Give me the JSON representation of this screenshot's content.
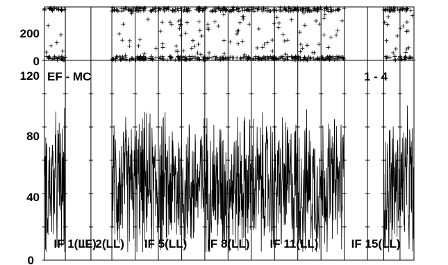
{
  "chart_data": [
    {
      "type": "scatter",
      "panel": "phase",
      "ylim": [
        0,
        360
      ],
      "yticks": [
        {
          "value": 200,
          "label": "200"
        },
        {
          "value": 0,
          "label": "0"
        }
      ],
      "segments": [
        [
          0,
          9
        ],
        [
          29,
          129
        ],
        [
          146,
          159
        ]
      ],
      "xlim": [
        0,
        159
      ],
      "marker": "+"
    },
    {
      "type": "line",
      "panel": "amplitude",
      "ylim": [
        0,
        120
      ],
      "yticks": [
        {
          "value": 120,
          "label": "120"
        },
        {
          "value": 80,
          "label": "80"
        },
        {
          "value": 40,
          "label": "40"
        },
        {
          "value": 0,
          "label": "0"
        }
      ],
      "annotations": {
        "left": "EF - MC",
        "right": "1 - 4"
      },
      "if_labels": [
        {
          "text": "IF 1(LL)",
          "x": 4
        },
        {
          "text": "IF 2(LL)",
          "x": 16
        },
        {
          "text": "IF 5(LL)",
          "x": 43
        },
        {
          "text": "IF 8(LL)",
          "x": 70
        },
        {
          "text": "IF 11(LL)",
          "x": 97
        },
        {
          "text": "IF 15(LL)",
          "x": 132
        }
      ],
      "segments": [
        [
          0,
          9
        ],
        [
          29,
          129
        ],
        [
          146,
          159
        ]
      ],
      "xlim": [
        0,
        159
      ],
      "amplitude_mean": 45,
      "amplitude_range": [
        5,
        105
      ]
    }
  ]
}
